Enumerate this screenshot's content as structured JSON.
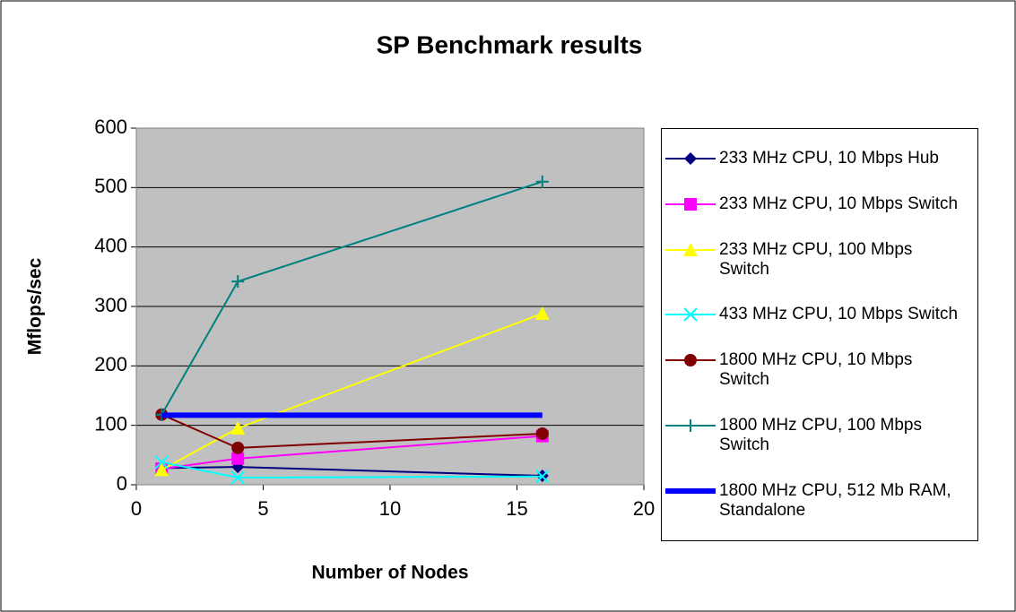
{
  "chart_data": {
    "type": "line",
    "title": "SP Benchmark results",
    "x_label": "Number of Nodes",
    "y_label": "Mflops/sec",
    "x": [
      1,
      4,
      16
    ],
    "xlim": [
      0,
      20
    ],
    "xticks": [
      0,
      5,
      10,
      15,
      20
    ],
    "ylim": [
      0,
      600
    ],
    "yticks": [
      0,
      100,
      200,
      300,
      400,
      500,
      600
    ],
    "grid": true,
    "legend": "right",
    "series": [
      {
        "name": "233 MHz CPU, 10 Mbps Hub",
        "color": "#000080",
        "marker": "diamond",
        "values": [
          28,
          30,
          15
        ]
      },
      {
        "name": "233 MHz CPU, 10 Mbps Switch",
        "color": "#ff00ff",
        "marker": "square",
        "values": [
          27,
          44,
          82
        ]
      },
      {
        "name": "233 MHz CPU, 100 Mbps Switch",
        "color": "#ffff00",
        "marker": "triangle",
        "values": [
          25,
          95,
          288
        ]
      },
      {
        "name": "433 MHz CPU, 10 Mbps Switch",
        "color": "#00ffff",
        "marker": "x",
        "values": [
          38,
          12,
          14
        ]
      },
      {
        "name": "1800 MHz CPU, 10 Mbps Switch",
        "color": "#800000",
        "marker": "circle",
        "values": [
          118,
          62,
          86
        ]
      },
      {
        "name": "1800 MHz CPU, 100 Mbps Switch",
        "color": "#008080",
        "marker": "plus",
        "values": [
          118,
          342,
          510
        ]
      },
      {
        "name": "1800 MHz CPU, 512 Mb RAM, Standalone",
        "color": "#0000ff",
        "marker": "none",
        "width": 6,
        "values": [
          117,
          117,
          117
        ]
      }
    ]
  }
}
